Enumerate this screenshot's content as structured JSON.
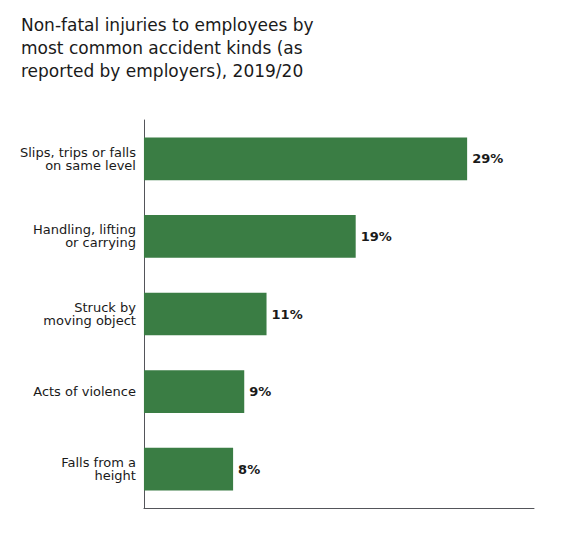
{
  "chart_data": {
    "type": "bar",
    "orientation": "horizontal",
    "title": "Non-fatal injuries to employees by\nmost common accident kinds (as\nreported by employers), 2019/20",
    "categories": [
      "Falls from a\nheight",
      "Acts of violence",
      "Struck by\nmoving object",
      "Handling, lifting\nor carrying",
      "Slips, trips or falls\non same level"
    ],
    "values": [
      8,
      9,
      11,
      19,
      29
    ],
    "value_labels": [
      "8%",
      "9%",
      "11%",
      "19%",
      "29%"
    ],
    "color": "#3a7d44",
    "xlim": [
      0,
      35
    ],
    "xticks": [],
    "tick_labels": "y",
    "data_labels": true,
    "grid": false
  }
}
